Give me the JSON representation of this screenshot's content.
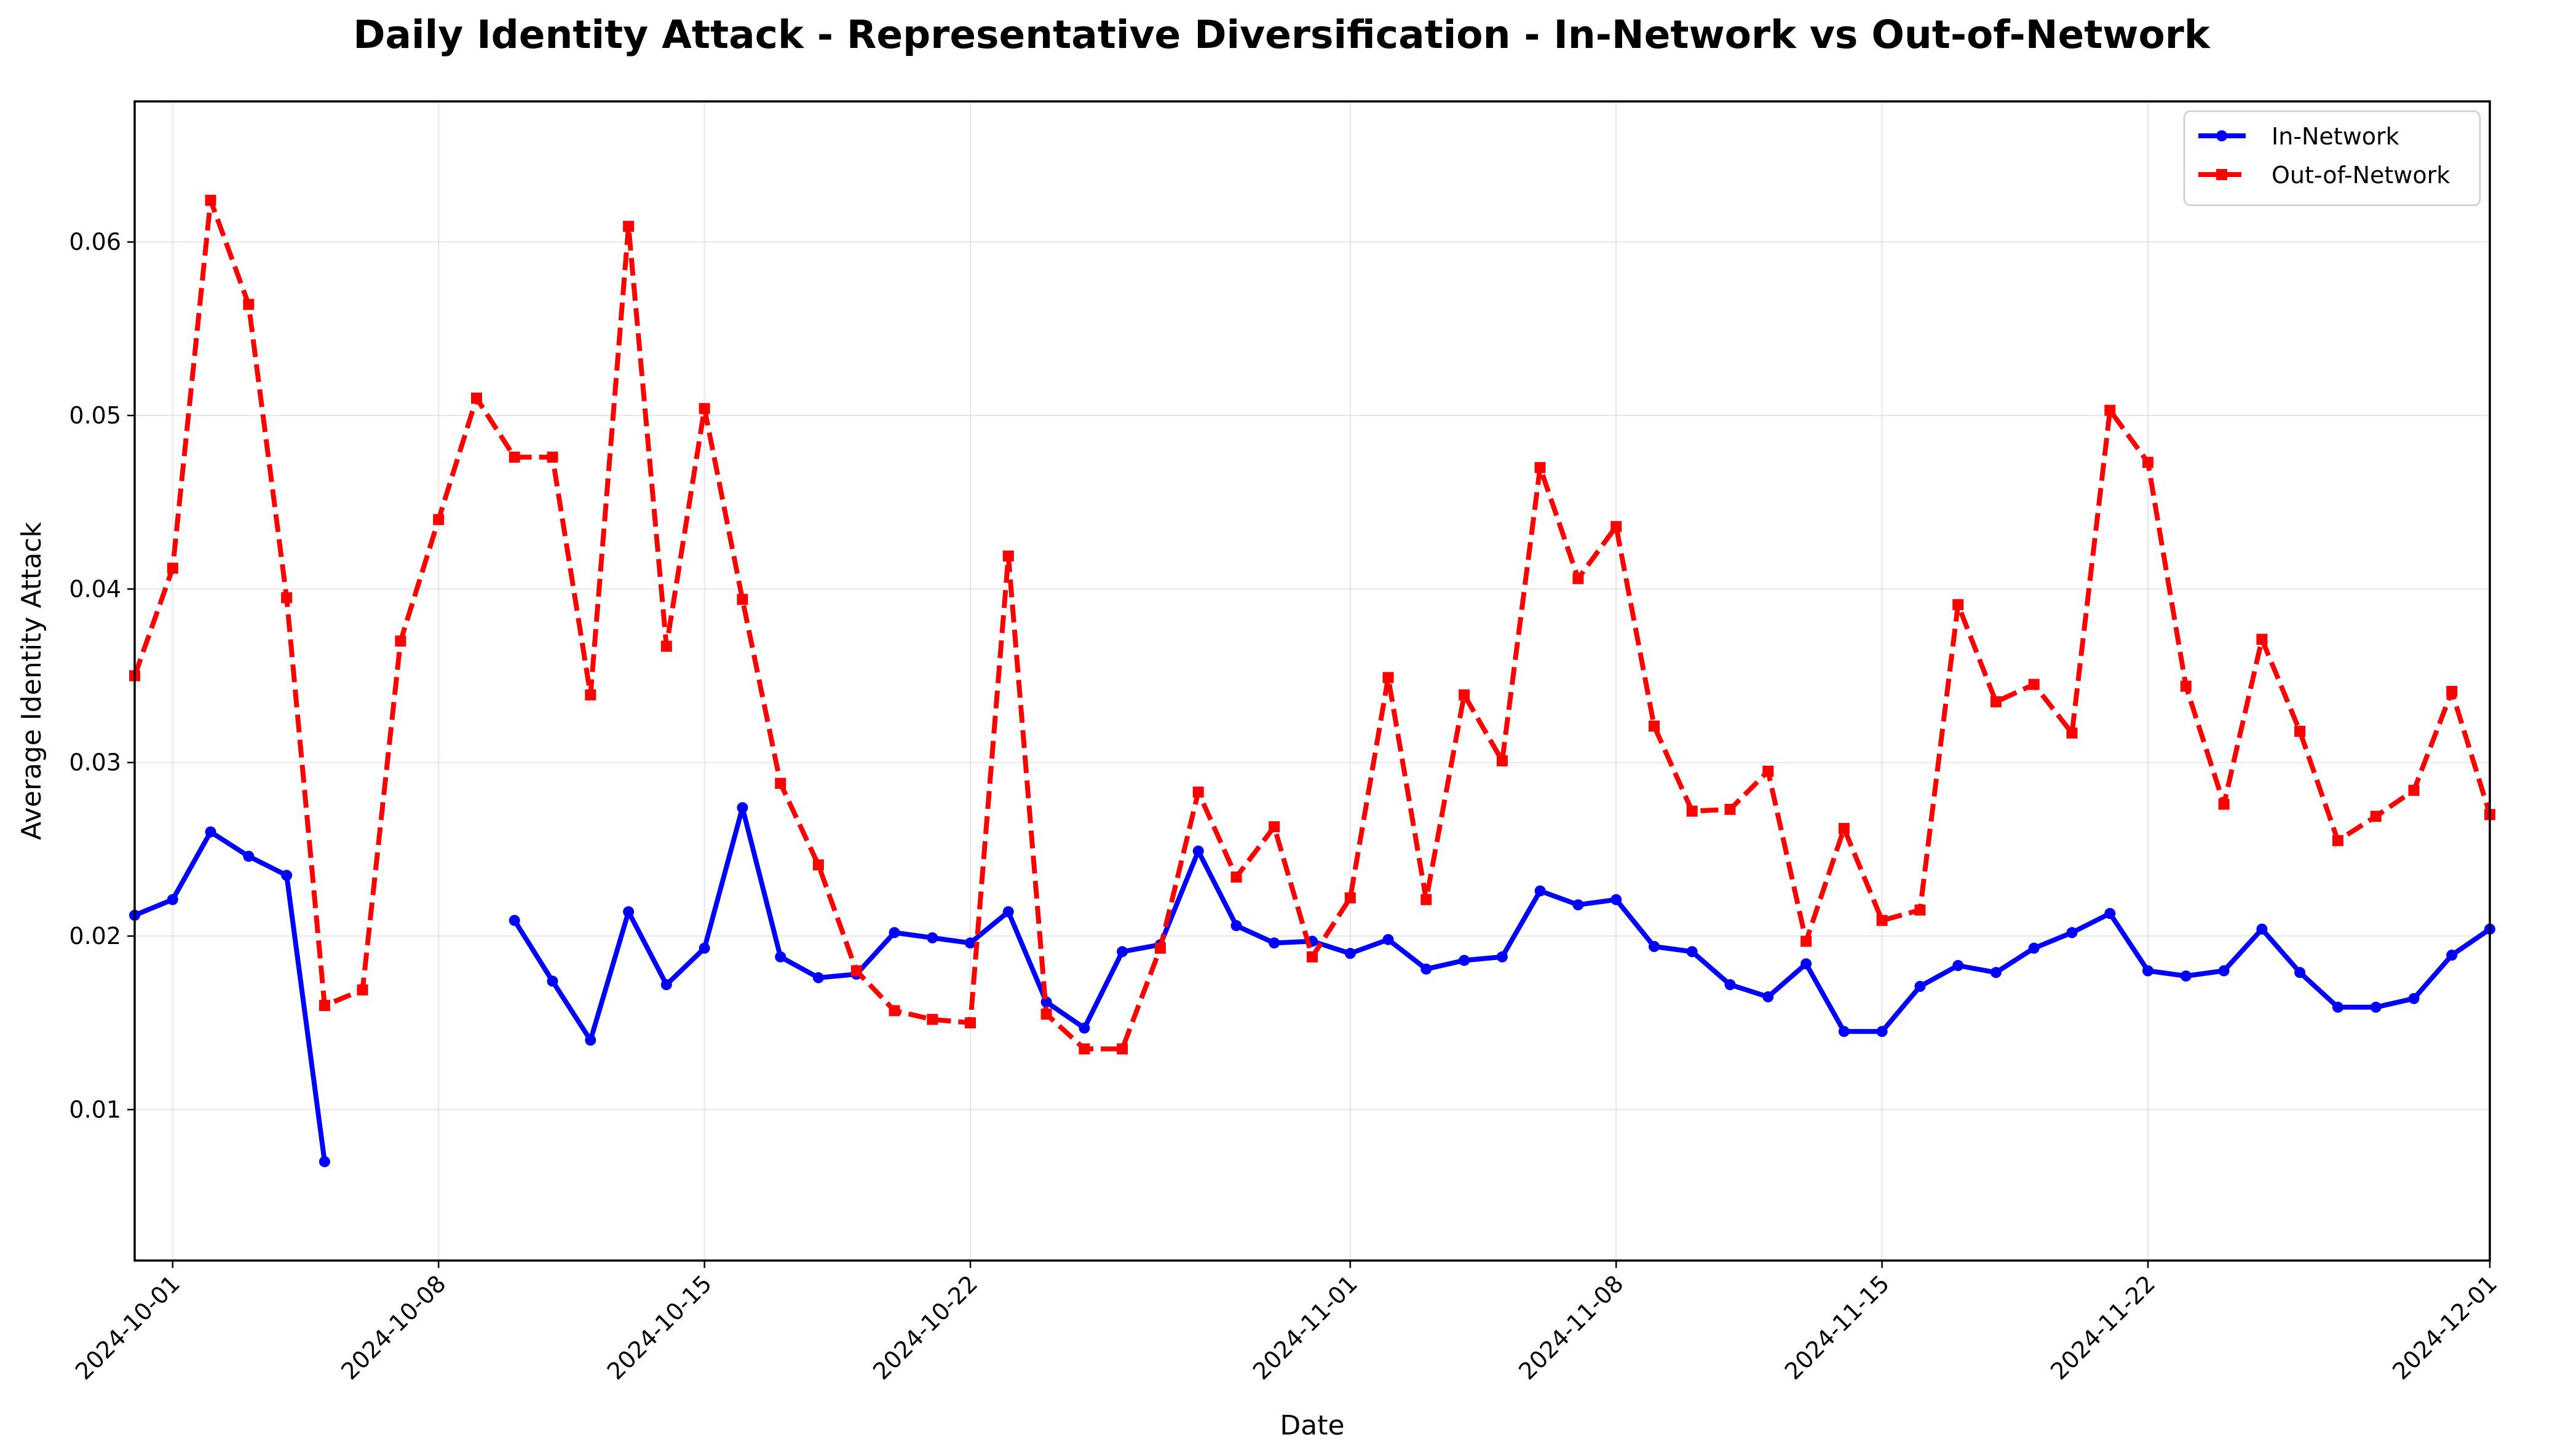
{
  "chart_data": {
    "type": "line",
    "title": "Daily Identity Attack - Representative Diversification - In-Network vs Out-of-Network",
    "xlabel": "Date",
    "ylabel": "Average Identity Attack",
    "xlim": [
      "2024-09-30",
      "2024-12-01"
    ],
    "ylim": [
      0.0013,
      0.0681
    ],
    "x_ticks": [
      "2024-10-01",
      "2024-10-08",
      "2024-10-15",
      "2024-10-22",
      "2024-11-01",
      "2024-11-08",
      "2024-11-15",
      "2024-11-22",
      "2024-12-01"
    ],
    "y_ticks": [
      0.01,
      0.02,
      0.03,
      0.04,
      0.05,
      0.06
    ],
    "y_tick_labels": [
      "0.01",
      "0.02",
      "0.03",
      "0.04",
      "0.05",
      "0.06"
    ],
    "grid": true,
    "legend_position": "top-right",
    "series": [
      {
        "name": "In-Network",
        "color": "#0000ff",
        "line_style": "solid",
        "marker": "circle",
        "points": [
          [
            "2024-09-30",
            0.0212
          ],
          [
            "2024-10-01",
            0.0221
          ],
          [
            "2024-10-02",
            0.026
          ],
          [
            "2024-10-03",
            0.0246
          ],
          [
            "2024-10-04",
            0.0235
          ],
          [
            "2024-10-05",
            0.007
          ],
          [
            "2024-10-06",
            null
          ],
          [
            "2024-10-07",
            null
          ],
          [
            "2024-10-08",
            null
          ],
          [
            "2024-10-09",
            null
          ],
          [
            "2024-10-10",
            0.0209
          ],
          [
            "2024-10-11",
            0.0174
          ],
          [
            "2024-10-12",
            0.014
          ],
          [
            "2024-10-13",
            0.0214
          ],
          [
            "2024-10-14",
            0.0172
          ],
          [
            "2024-10-15",
            0.0193
          ],
          [
            "2024-10-16",
            0.0274
          ],
          [
            "2024-10-17",
            0.0188
          ],
          [
            "2024-10-18",
            0.0176
          ],
          [
            "2024-10-19",
            0.0178
          ],
          [
            "2024-10-20",
            0.0202
          ],
          [
            "2024-10-21",
            0.0199
          ],
          [
            "2024-10-22",
            0.0196
          ],
          [
            "2024-10-23",
            0.0214
          ],
          [
            "2024-10-24",
            0.0162
          ],
          [
            "2024-10-25",
            0.0147
          ],
          [
            "2024-10-26",
            0.0191
          ],
          [
            "2024-10-27",
            0.0195
          ],
          [
            "2024-10-28",
            0.0249
          ],
          [
            "2024-10-29",
            0.0206
          ],
          [
            "2024-10-30",
            0.0196
          ],
          [
            "2024-10-31",
            0.0197
          ],
          [
            "2024-11-01",
            0.019
          ],
          [
            "2024-11-02",
            0.0198
          ],
          [
            "2024-11-03",
            0.0181
          ],
          [
            "2024-11-04",
            0.0186
          ],
          [
            "2024-11-05",
            0.0188
          ],
          [
            "2024-11-06",
            0.0226
          ],
          [
            "2024-11-07",
            0.0218
          ],
          [
            "2024-11-08",
            0.0221
          ],
          [
            "2024-11-09",
            0.0194
          ],
          [
            "2024-11-10",
            0.0191
          ],
          [
            "2024-11-11",
            0.0172
          ],
          [
            "2024-11-12",
            0.0165
          ],
          [
            "2024-11-13",
            0.0184
          ],
          [
            "2024-11-14",
            0.0145
          ],
          [
            "2024-11-15",
            0.0145
          ],
          [
            "2024-11-16",
            0.0171
          ],
          [
            "2024-11-17",
            0.0183
          ],
          [
            "2024-11-18",
            0.0179
          ],
          [
            "2024-11-19",
            0.0193
          ],
          [
            "2024-11-20",
            0.0202
          ],
          [
            "2024-11-21",
            0.0213
          ],
          [
            "2024-11-22",
            0.018
          ],
          [
            "2024-11-23",
            0.0177
          ],
          [
            "2024-11-24",
            0.018
          ],
          [
            "2024-11-25",
            0.0204
          ],
          [
            "2024-11-26",
            0.0179
          ],
          [
            "2024-11-27",
            0.0159
          ],
          [
            "2024-11-28",
            0.0159
          ],
          [
            "2024-11-29",
            0.0164
          ],
          [
            "2024-11-30",
            0.0189
          ],
          [
            "2024-12-01",
            0.0204
          ]
        ]
      },
      {
        "name": "Out-of-Network",
        "color": "#ff0000",
        "line_style": "dashed",
        "marker": "square",
        "points": [
          [
            "2024-09-30",
            0.035
          ],
          [
            "2024-10-01",
            0.0412
          ],
          [
            "2024-10-02",
            0.0624
          ],
          [
            "2024-10-03",
            0.0564
          ],
          [
            "2024-10-04",
            0.0395
          ],
          [
            "2024-10-05",
            0.016
          ],
          [
            "2024-10-06",
            0.0169
          ],
          [
            "2024-10-07",
            0.037
          ],
          [
            "2024-10-08",
            0.044
          ],
          [
            "2024-10-09",
            0.051
          ],
          [
            "2024-10-10",
            0.0476
          ],
          [
            "2024-10-11",
            0.0476
          ],
          [
            "2024-10-12",
            0.0339
          ],
          [
            "2024-10-13",
            0.0609
          ],
          [
            "2024-10-14",
            0.0367
          ],
          [
            "2024-10-15",
            0.0504
          ],
          [
            "2024-10-16",
            0.0394
          ],
          [
            "2024-10-17",
            0.0288
          ],
          [
            "2024-10-18",
            0.0241
          ],
          [
            "2024-10-19",
            0.018
          ],
          [
            "2024-10-20",
            0.0157
          ],
          [
            "2024-10-21",
            0.0152
          ],
          [
            "2024-10-22",
            0.015
          ],
          [
            "2024-10-23",
            0.0419
          ],
          [
            "2024-10-24",
            0.0155
          ],
          [
            "2024-10-25",
            0.0135
          ],
          [
            "2024-10-26",
            0.0135
          ],
          [
            "2024-10-27",
            0.0193
          ],
          [
            "2024-10-28",
            0.0283
          ],
          [
            "2024-10-29",
            0.0234
          ],
          [
            "2024-10-30",
            0.0263
          ],
          [
            "2024-10-31",
            0.0188
          ],
          [
            "2024-11-01",
            0.0222
          ],
          [
            "2024-11-02",
            0.0349
          ],
          [
            "2024-11-03",
            0.0221
          ],
          [
            "2024-11-04",
            0.0339
          ],
          [
            "2024-11-05",
            0.0301
          ],
          [
            "2024-11-06",
            0.047
          ],
          [
            "2024-11-07",
            0.0406
          ],
          [
            "2024-11-08",
            0.0436
          ],
          [
            "2024-11-09",
            0.0321
          ],
          [
            "2024-11-10",
            0.0272
          ],
          [
            "2024-11-11",
            0.0273
          ],
          [
            "2024-11-12",
            0.0295
          ],
          [
            "2024-11-13",
            0.0197
          ],
          [
            "2024-11-14",
            0.0262
          ],
          [
            "2024-11-15",
            0.0209
          ],
          [
            "2024-11-16",
            0.0215
          ],
          [
            "2024-11-17",
            0.0391
          ],
          [
            "2024-11-18",
            0.0335
          ],
          [
            "2024-11-19",
            0.0345
          ],
          [
            "2024-11-20",
            0.0317
          ],
          [
            "2024-11-21",
            0.0503
          ],
          [
            "2024-11-22",
            0.0473
          ],
          [
            "2024-11-23",
            0.0344
          ],
          [
            "2024-11-24",
            0.0276
          ],
          [
            "2024-11-25",
            0.0371
          ],
          [
            "2024-11-26",
            0.0318
          ],
          [
            "2024-11-27",
            0.0255
          ],
          [
            "2024-11-28",
            0.0269
          ],
          [
            "2024-11-29",
            0.0284
          ],
          [
            "2024-11-30",
            0.0341
          ],
          [
            "2024-12-01",
            0.027
          ]
        ]
      }
    ]
  }
}
